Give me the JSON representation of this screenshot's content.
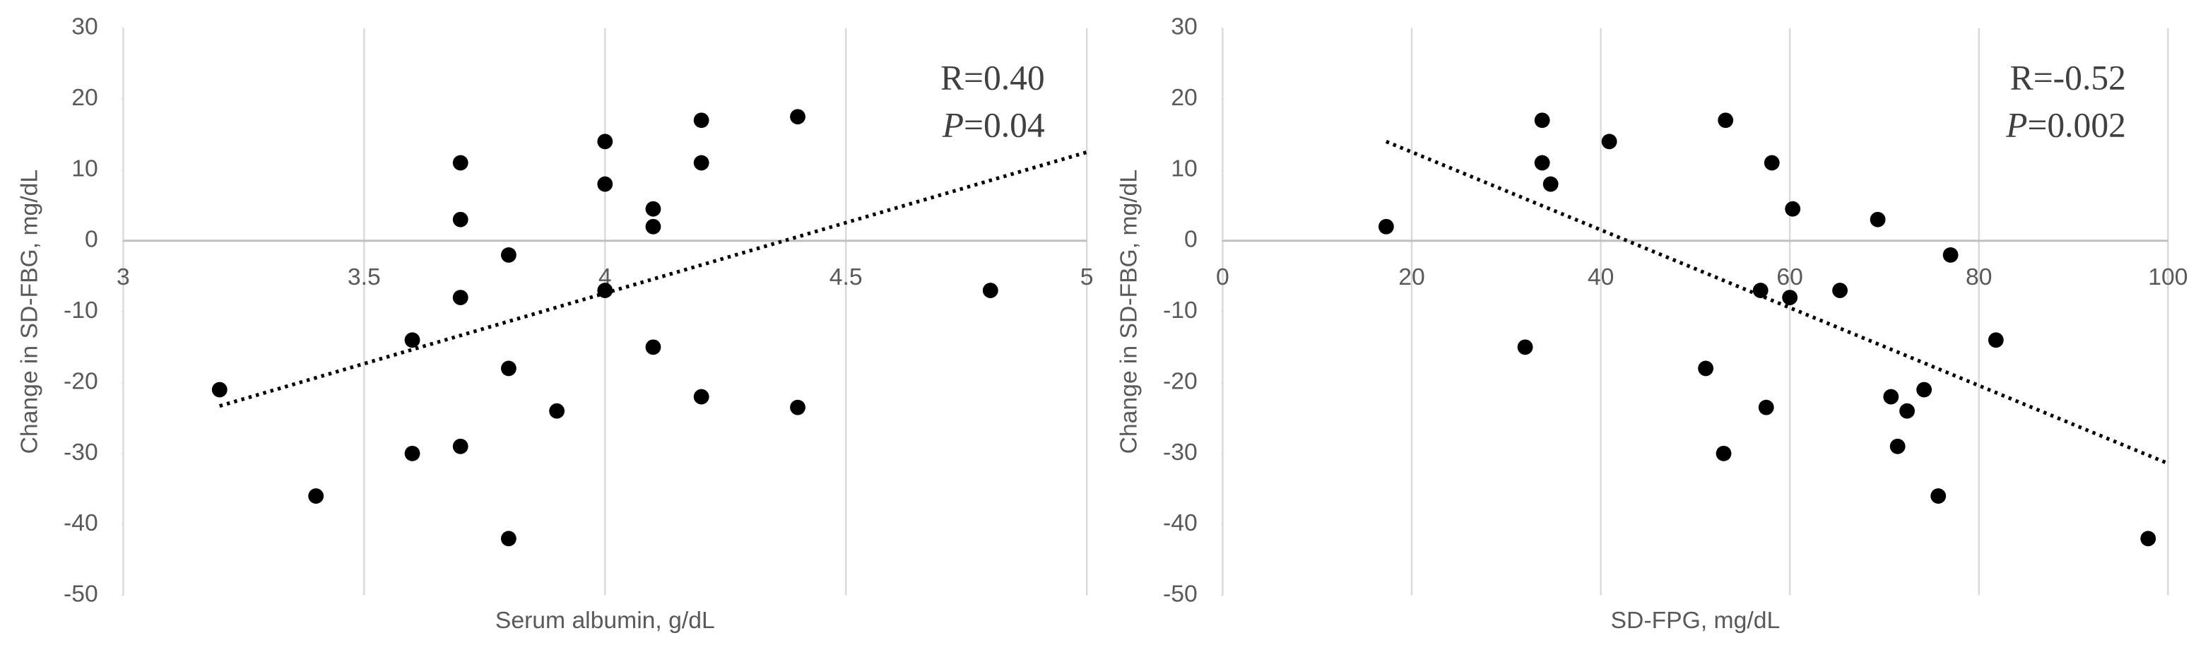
{
  "chart_data": [
    {
      "type": "scatter",
      "x_label": "Serum albumin, g/dL",
      "y_label": "Change in SD-FBG, mg/dL",
      "x": [
        3.2,
        3.4,
        3.6,
        3.6,
        3.7,
        3.7,
        3.7,
        3.7,
        3.8,
        3.8,
        3.8,
        3.9,
        4.0,
        4.0,
        4.0,
        4.1,
        4.1,
        4.1,
        4.2,
        4.2,
        4.2,
        4.4,
        4.4,
        4.8
      ],
      "values": [
        -21,
        -36,
        -14,
        -30,
        11,
        3,
        -8,
        -29,
        -2,
        -18,
        -42,
        -24,
        14,
        8,
        -7,
        4.5,
        2,
        -15,
        17,
        11,
        -22,
        17.5,
        -23.5,
        -7
      ],
      "color": "#000000",
      "xlim": [
        3,
        5
      ],
      "xticks": [
        3,
        3.5,
        4,
        4.5,
        5
      ],
      "ylim": [
        -50,
        30
      ],
      "yticks": [
        -50,
        -40,
        -30,
        -20,
        -10,
        0,
        10,
        20,
        30
      ],
      "grid": true,
      "trendline": {
        "x": [
          3.2,
          5
        ],
        "y": [
          -23.3,
          12.5
        ],
        "style": "dotted"
      },
      "r_text": "R=0.40",
      "p_symbol": "P",
      "p_text": "=0.04"
    },
    {
      "type": "scatter",
      "x_label": "SD-FPG, mg/dL",
      "y_label": "Change in SD-FBG, mg/dL",
      "x": [
        17.3,
        32,
        33.8,
        33.8,
        34.7,
        40.9,
        51.1,
        53,
        53.2,
        56.9,
        57.5,
        58.1,
        60,
        60.3,
        65.3,
        69.3,
        70.7,
        71.4,
        72.4,
        74.2,
        75.7,
        77,
        81.8,
        97.9
      ],
      "values": [
        2,
        -15,
        17,
        11,
        8,
        14,
        -18,
        -30,
        17,
        -7,
        -23.5,
        11,
        -8,
        4.5,
        -7,
        3,
        -22,
        -29,
        -24,
        -21,
        -36,
        -2,
        -14,
        -42
      ],
      "color": "#000000",
      "xlim": [
        0,
        100
      ],
      "xticks": [
        0,
        20,
        40,
        60,
        80,
        100
      ],
      "ylim": [
        -50,
        30
      ],
      "yticks": [
        -50,
        -40,
        -30,
        -20,
        -10,
        0,
        10,
        20,
        30
      ],
      "grid": true,
      "trendline": {
        "x": [
          17.3,
          100
        ],
        "y": [
          14,
          -31.4
        ],
        "style": "dotted"
      },
      "r_text": "R=-0.52",
      "p_symbol": "P",
      "p_text": "=0.002"
    }
  ]
}
